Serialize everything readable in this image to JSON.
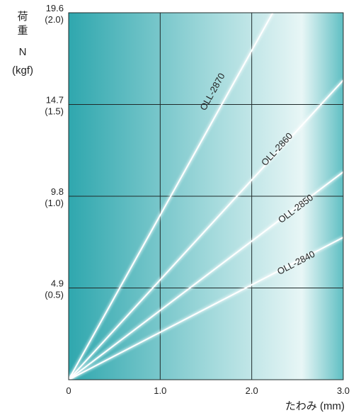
{
  "chart_data": {
    "type": "line",
    "title": "",
    "ylabel_lines": [
      "荷",
      "重",
      "N",
      "(kgf)"
    ],
    "xlabel": "たわみ (mm)",
    "x_ticks": [
      "0",
      "1.0",
      "2.0",
      "3.0"
    ],
    "y_ticks": [
      {
        "value": 4.9,
        "label": "4.9",
        "sub": "(0.5)"
      },
      {
        "value": 9.8,
        "label": "9.8",
        "sub": "(1.0)"
      },
      {
        "value": 14.7,
        "label": "14.7",
        "sub": "(1.5)"
      },
      {
        "value": 19.6,
        "label": "19.6",
        "sub": "(2.0)"
      }
    ],
    "xlim": [
      0,
      3.0
    ],
    "ylim": [
      0,
      19.6
    ],
    "grid": true,
    "series": [
      {
        "name": "OLL-2870",
        "x": [
          0,
          2.23
        ],
        "y": [
          0,
          19.6
        ]
      },
      {
        "name": "OLL-2860",
        "x": [
          0,
          3.0
        ],
        "y": [
          0,
          16.0
        ]
      },
      {
        "name": "OLL-2850",
        "x": [
          0,
          3.0
        ],
        "y": [
          0,
          11.1
        ]
      },
      {
        "name": "OLL-2840",
        "x": [
          0,
          3.0
        ],
        "y": [
          0,
          7.6
        ]
      }
    ],
    "series_label_positions": [
      {
        "x": 1.6,
        "y": 15.3
      },
      {
        "x": 2.3,
        "y": 12.2
      },
      {
        "x": 2.5,
        "y": 9.0
      },
      {
        "x": 2.5,
        "y": 6.1
      }
    ]
  },
  "colors": {
    "plot_edge": "#2fa7ae",
    "plot_mid": "#a9dcde",
    "plot_light": "#e8f6f6",
    "line": "#ffffff",
    "grid": "#1f2a2a"
  }
}
